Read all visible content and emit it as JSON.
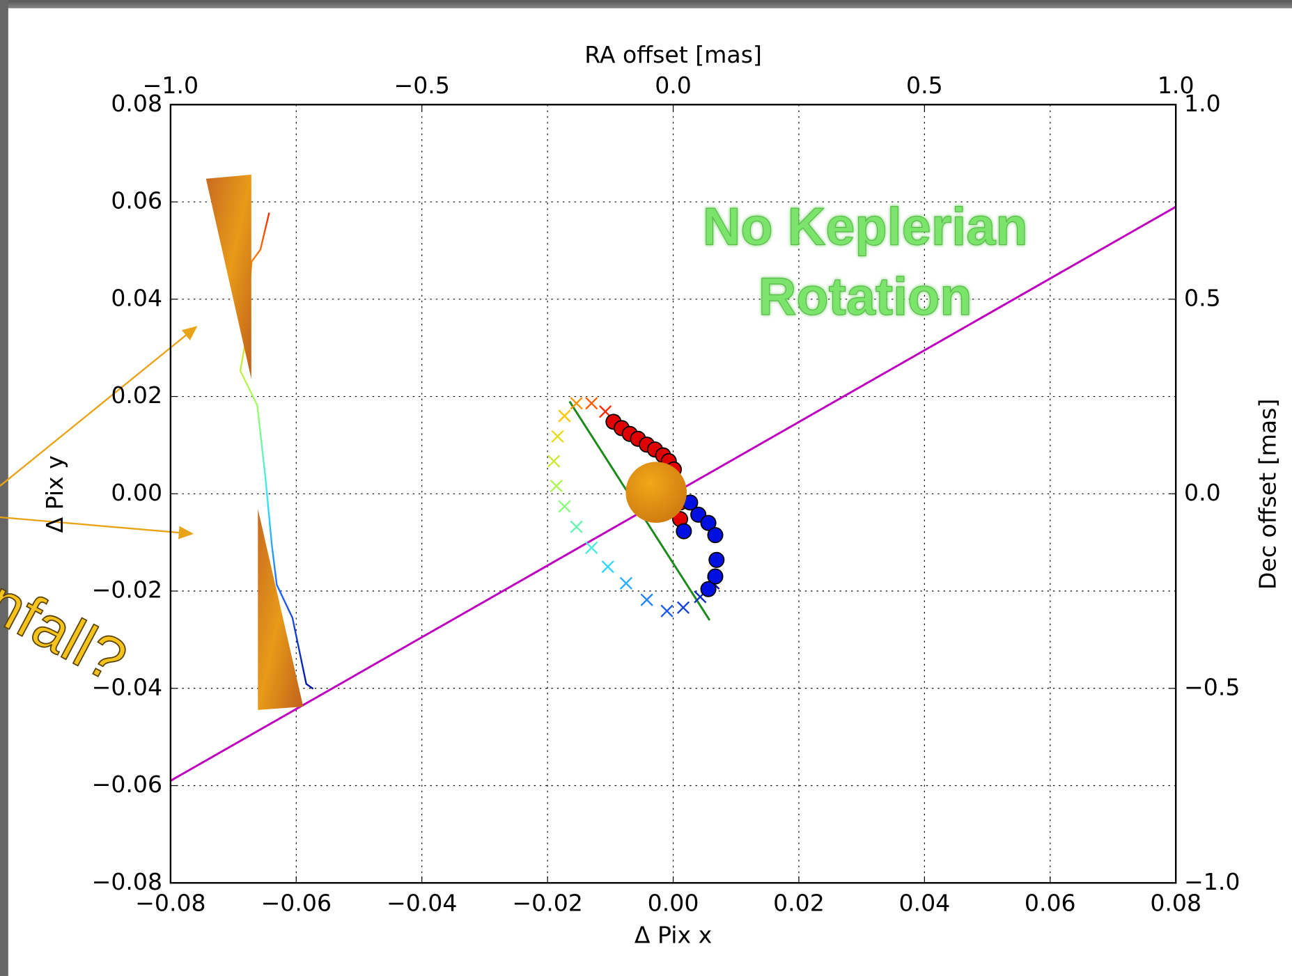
{
  "chart_data": {
    "type": "scatter",
    "xlabel": "Δ Pix x",
    "ylabel": "Δ Pix y",
    "x2label": "RA offset [mas]",
    "y2label": "Dec offset [mas]",
    "xlim": [
      -0.08,
      0.08
    ],
    "ylim": [
      -0.08,
      0.08
    ],
    "x2lim": [
      -1.0,
      1.0
    ],
    "y2lim": [
      -1.0,
      1.0
    ],
    "xticks": [
      {
        "value": -0.08,
        "label": "−0.08"
      },
      {
        "value": -0.06,
        "label": "−0.06"
      },
      {
        "value": -0.04,
        "label": "−0.04"
      },
      {
        "value": -0.02,
        "label": "−0.02"
      },
      {
        "value": 0,
        "label": "0.00"
      },
      {
        "value": 0.02,
        "label": "0.02"
      },
      {
        "value": 0.04,
        "label": "0.04"
      },
      {
        "value": 0.06,
        "label": "0.06"
      },
      {
        "value": 0.08,
        "label": "0.08"
      }
    ],
    "yticks": [
      {
        "value": -0.08,
        "label": "−0.08"
      },
      {
        "value": -0.06,
        "label": "−0.06"
      },
      {
        "value": -0.04,
        "label": "−0.04"
      },
      {
        "value": -0.02,
        "label": "−0.02"
      },
      {
        "value": 0,
        "label": "0.00"
      },
      {
        "value": 0.02,
        "label": "0.02"
      },
      {
        "value": 0.04,
        "label": "0.04"
      },
      {
        "value": 0.06,
        "label": "0.06"
      },
      {
        "value": 0.08,
        "label": "0.08"
      }
    ],
    "x2ticks": [
      {
        "value": -1.0,
        "label": "−1.0"
      },
      {
        "value": -0.5,
        "label": "−0.5"
      },
      {
        "value": 0,
        "label": "0.0"
      },
      0.5,
      {
        "value": 1,
        "label": "1.0"
      }
    ],
    "y2ticks": [
      {
        "value": -1.0,
        "label": "−1.0"
      },
      {
        "value": -0.5,
        "label": "−0.5"
      },
      {
        "value": 0,
        "label": "0.0"
      },
      0.5,
      {
        "value": 1,
        "label": "1.0"
      }
    ],
    "grid": true,
    "colormap": [
      "#ff2a00",
      "#ffd000",
      "#a0ff60",
      "#30e8ff",
      "#2060ff",
      "#0010a0"
    ],
    "series": [
      {
        "marker": "line",
        "color": "#c000c0",
        "x": [
          -0.08,
          0.08
        ],
        "y": [
          -0.059,
          0.059
        ]
      },
      {
        "marker": "line",
        "color": "#1a8a1a",
        "x": [
          -0.0165,
          0.0058
        ],
        "y": [
          0.019,
          -0.026
        ]
      },
      {
        "marker": "line",
        "color": "colormap",
        "x": [
          -0.0643,
          -0.0657,
          -0.0671,
          -0.0682,
          -0.0689,
          -0.0662,
          -0.0649,
          -0.0639,
          -0.0631,
          -0.0606,
          -0.0584,
          -0.0573
        ],
        "y": [
          0.0578,
          0.0502,
          0.0477,
          0.0304,
          0.0253,
          0.0182,
          0.0033,
          -0.0103,
          -0.0187,
          -0.0255,
          -0.0391,
          -0.0401
        ]
      },
      {
        "marker": "x",
        "color": "colormap",
        "x": [
          -0.0108,
          -0.013,
          -0.0154,
          -0.0173,
          -0.0184,
          -0.019,
          -0.0186,
          -0.0173,
          -0.0154,
          -0.013,
          -0.0104,
          -0.0075,
          -0.0042,
          -0.001,
          0.0016,
          0.0043,
          0.0064
        ],
        "y": [
          0.0169,
          0.0186,
          0.0186,
          0.016,
          0.0118,
          0.0067,
          0.0016,
          -0.0026,
          -0.0068,
          -0.0111,
          -0.015,
          -0.0184,
          -0.0218,
          -0.0241,
          -0.0234,
          -0.0212,
          -0.0184
        ]
      },
      {
        "marker": "circle",
        "color": "#e00000",
        "x": [
          -0.0095,
          -0.0082,
          -0.0069,
          -0.0056,
          -0.0042,
          -0.0029,
          -0.0016,
          -0.0007,
          0.0001,
          0.0006,
          0.0011,
          0.0011
        ],
        "y": [
          0.0148,
          0.0135,
          0.0123,
          0.0113,
          0.0101,
          0.0091,
          0.0079,
          0.0067,
          0.005,
          0.0016,
          -0.0018,
          -0.0052
        ]
      },
      {
        "marker": "circle",
        "color": "#0010e0",
        "x": [
          0.0027,
          0.004,
          0.0056,
          0.0067,
          0.0069,
          0.0067,
          0.0056,
          0.0017
        ],
        "y": [
          -0.0018,
          -0.0043,
          -0.006,
          -0.0085,
          -0.0136,
          -0.017,
          -0.0196,
          -0.0077
        ]
      },
      {
        "marker": "disk",
        "color": "#e89a10",
        "x": [
          -0.0027
        ],
        "y": [
          0.0003
        ]
      }
    ],
    "annotations": [
      "No Keplerian",
      "Rotation",
      "Infall?"
    ]
  }
}
